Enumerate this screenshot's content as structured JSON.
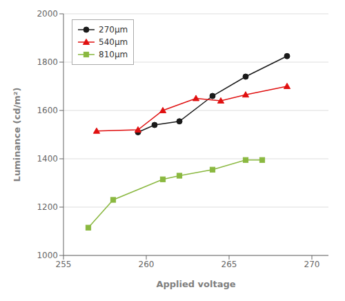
{
  "chart_data": {
    "type": "line",
    "xlabel": "Applied voltage",
    "ylabel": "Luminance (cd/m²)",
    "xlim": [
      255,
      271
    ],
    "ylim": [
      1000,
      2000
    ],
    "xticks": [
      255,
      260,
      265,
      270
    ],
    "yticks": [
      1000,
      1200,
      1400,
      1600,
      1800,
      2000
    ],
    "grid": "y",
    "legend": "upper left",
    "series": [
      {
        "name": "270μm",
        "color": "#1a1a1a",
        "marker": "circle",
        "x": [
          259.5,
          260.5,
          262,
          264,
          266,
          268.5
        ],
        "values": [
          1510,
          1540,
          1555,
          1660,
          1740,
          1825
        ]
      },
      {
        "name": "540μm",
        "color": "#e01010",
        "marker": "triangle",
        "x": [
          257,
          259.5,
          261,
          263,
          264.5,
          266,
          268.5
        ],
        "values": [
          1515,
          1520,
          1600,
          1650,
          1640,
          1665,
          1700
        ]
      },
      {
        "name": "810μm",
        "color": "#8ab840",
        "marker": "square",
        "x": [
          256.5,
          258,
          261,
          262,
          264,
          266,
          267
        ],
        "values": [
          1115,
          1230,
          1315,
          1330,
          1355,
          1395,
          1395
        ]
      }
    ]
  }
}
